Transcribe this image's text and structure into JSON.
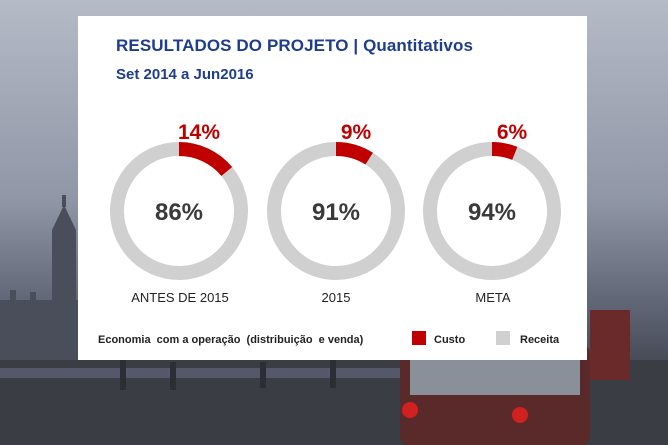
{
  "chart_data": {
    "type": "pie",
    "title": "RESULTADOS DO PROJETO | Quantitativos",
    "subtitle": "Set 2014 a Jun2016",
    "categories": [
      "ANTES DE 2015",
      "2015",
      "META"
    ],
    "series": [
      {
        "name": "Custo",
        "values": [
          14,
          9,
          6
        ]
      },
      {
        "name": "Receita",
        "values": [
          86,
          91,
          94
        ]
      }
    ],
    "custo_labels": [
      "14%",
      "9%",
      "6%"
    ],
    "receita_labels": [
      "86%",
      "91%",
      "94%"
    ],
    "legend": {
      "caption": "Economia  com a operação  (distribuição  e venda)",
      "items": [
        {
          "label": "Custo",
          "color": "#c00000"
        },
        {
          "label": "Receita",
          "color": "#d0d0d0"
        }
      ]
    },
    "colors": {
      "custo": "#c00000",
      "receita": "#d0d0d0",
      "title": "#1f3d8f"
    }
  }
}
